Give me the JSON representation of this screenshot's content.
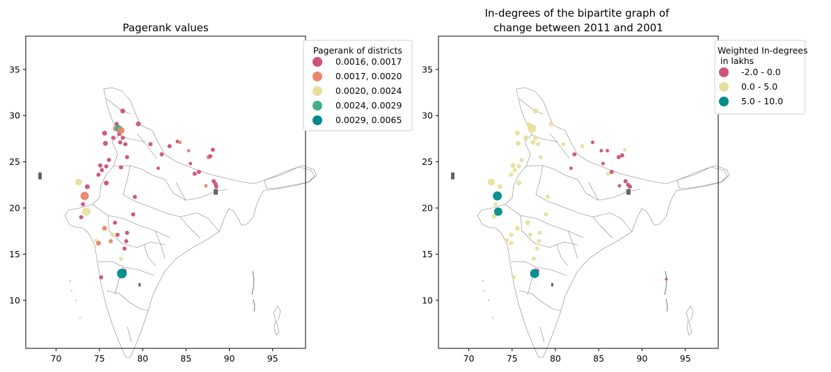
{
  "chart_data": [
    {
      "type": "scatter",
      "title": "Pagerank values",
      "xlim": [
        66.5,
        98.8
      ],
      "ylim": [
        4.8,
        38.6
      ],
      "xticks": [
        70,
        75,
        80,
        85,
        90,
        95
      ],
      "yticks": [
        10,
        15,
        20,
        25,
        30,
        35
      ],
      "legend": {
        "title": "Pagerank of districts",
        "placement": "top-right-outside",
        "entries": [
          {
            "label": "0.0016, 0.0017",
            "color": "#cb527b"
          },
          {
            "label": "0.0017, 0.0020",
            "color": "#e8866a"
          },
          {
            "label": "0.0020, 0.0024",
            "color": "#e6e09c"
          },
          {
            "label": "0.0024, 0.0029",
            "color": "#41b183"
          },
          {
            "label": "0.0029, 0.0065",
            "color": "#008b8b"
          }
        ]
      },
      "points": [
        {
          "x": 77.6,
          "y": 12.9,
          "class": 4,
          "size": 7
        },
        {
          "x": 77.2,
          "y": 28.6,
          "class": 3,
          "size": 5
        },
        {
          "x": 73.3,
          "y": 21.3,
          "class": 1,
          "size": 6
        },
        {
          "x": 72.6,
          "y": 22.8,
          "class": 2,
          "size": 5
        },
        {
          "x": 73.5,
          "y": 19.6,
          "class": 2,
          "size": 6
        },
        {
          "x": 77.5,
          "y": 28.4,
          "class": 1,
          "size": 5
        },
        {
          "x": 76.9,
          "y": 28.6,
          "class": 1,
          "size": 4
        },
        {
          "x": 87.6,
          "y": 25.5,
          "class": 1,
          "size": 3
        },
        {
          "x": 75.6,
          "y": 17.8,
          "class": 1,
          "size": 3.5
        },
        {
          "x": 74.9,
          "y": 16.2,
          "class": 1,
          "size": 3.5
        },
        {
          "x": 76.3,
          "y": 16.4,
          "class": 1,
          "size": 3
        },
        {
          "x": 84.3,
          "y": 27.1,
          "class": 1,
          "size": 2.5
        },
        {
          "x": 85.3,
          "y": 26.2,
          "class": 1,
          "size": 2.5
        },
        {
          "x": 87.3,
          "y": 22.4,
          "class": 1,
          "size": 2.5
        },
        {
          "x": 77.7,
          "y": 30.5,
          "class": 0,
          "size": 3.5
        },
        {
          "x": 79.5,
          "y": 29.1,
          "class": 0,
          "size": 3.5
        },
        {
          "x": 77.0,
          "y": 29.1,
          "class": 0,
          "size": 3
        },
        {
          "x": 77.3,
          "y": 28.0,
          "class": 0,
          "size": 3
        },
        {
          "x": 77.7,
          "y": 27.6,
          "class": 0,
          "size": 3
        },
        {
          "x": 77.4,
          "y": 27.1,
          "class": 0,
          "size": 3
        },
        {
          "x": 75.6,
          "y": 28.1,
          "class": 0,
          "size": 3.5
        },
        {
          "x": 76.6,
          "y": 27.6,
          "class": 0,
          "size": 3
        },
        {
          "x": 75.7,
          "y": 27.0,
          "class": 0,
          "size": 3.5
        },
        {
          "x": 78.0,
          "y": 26.9,
          "class": 0,
          "size": 3
        },
        {
          "x": 80.9,
          "y": 26.9,
          "class": 0,
          "size": 3
        },
        {
          "x": 83.1,
          "y": 26.7,
          "class": 0,
          "size": 3
        },
        {
          "x": 84.0,
          "y": 27.2,
          "class": 0,
          "size": 2.5
        },
        {
          "x": 82.2,
          "y": 25.8,
          "class": 0,
          "size": 3
        },
        {
          "x": 78.2,
          "y": 25.5,
          "class": 0,
          "size": 3
        },
        {
          "x": 76.1,
          "y": 25.2,
          "class": 0,
          "size": 3
        },
        {
          "x": 75.1,
          "y": 24.6,
          "class": 0,
          "size": 3
        },
        {
          "x": 75.8,
          "y": 24.5,
          "class": 0,
          "size": 3
        },
        {
          "x": 77.5,
          "y": 24.4,
          "class": 0,
          "size": 3
        },
        {
          "x": 75.3,
          "y": 24.1,
          "class": 0,
          "size": 3
        },
        {
          "x": 81.8,
          "y": 24.3,
          "class": 0,
          "size": 2.5
        },
        {
          "x": 74.9,
          "y": 23.6,
          "class": 0,
          "size": 3
        },
        {
          "x": 85.5,
          "y": 24.8,
          "class": 0,
          "size": 2.5
        },
        {
          "x": 86.0,
          "y": 23.7,
          "class": 0,
          "size": 3
        },
        {
          "x": 86.5,
          "y": 23.9,
          "class": 0,
          "size": 3
        },
        {
          "x": 87.8,
          "y": 25.6,
          "class": 0,
          "size": 3
        },
        {
          "x": 88.1,
          "y": 26.3,
          "class": 0,
          "size": 3
        },
        {
          "x": 75.8,
          "y": 22.7,
          "class": 0,
          "size": 3.5
        },
        {
          "x": 73.6,
          "y": 22.3,
          "class": 0,
          "size": 3.5
        },
        {
          "x": 73.1,
          "y": 20.4,
          "class": 0,
          "size": 3
        },
        {
          "x": 72.9,
          "y": 19.0,
          "class": 0,
          "size": 3
        },
        {
          "x": 79.1,
          "y": 21.2,
          "class": 0,
          "size": 3
        },
        {
          "x": 88.2,
          "y": 22.9,
          "class": 0,
          "size": 3
        },
        {
          "x": 88.4,
          "y": 22.6,
          "class": 0,
          "size": 3
        },
        {
          "x": 88.5,
          "y": 22.3,
          "class": 0,
          "size": 3
        },
        {
          "x": 78.9,
          "y": 19.3,
          "class": 0,
          "size": 3
        },
        {
          "x": 76.8,
          "y": 18.4,
          "class": 0,
          "size": 3
        },
        {
          "x": 78.2,
          "y": 17.3,
          "class": 0,
          "size": 3
        },
        {
          "x": 77.1,
          "y": 17.1,
          "class": 0,
          "size": 3
        },
        {
          "x": 78.1,
          "y": 16.4,
          "class": 0,
          "size": 3
        },
        {
          "x": 77.9,
          "y": 15.6,
          "class": 0,
          "size": 3
        },
        {
          "x": 75.2,
          "y": 12.5,
          "class": 0,
          "size": 3
        },
        {
          "x": 77.9,
          "y": 13.2,
          "class": 0,
          "size": 3
        },
        {
          "x": 76.5,
          "y": 17.1,
          "class": 2,
          "size": 3
        },
        {
          "x": 77.5,
          "y": 14.5,
          "class": 2,
          "size": 3
        },
        {
          "x": 74.6,
          "y": 16.5,
          "class": 2,
          "size": 2.5
        }
      ]
    },
    {
      "type": "scatter",
      "title": "In-degrees of the bipartite graph of",
      "title2": "change between 2011 and 2001",
      "xlim": [
        66.5,
        98.8
      ],
      "ylim": [
        4.8,
        38.6
      ],
      "xticks": [
        70,
        75,
        80,
        85,
        90,
        95
      ],
      "yticks": [
        10,
        15,
        20,
        25,
        30,
        35
      ],
      "legend": {
        "title": "Weighted In-degrees",
        "title2": " in lakhs",
        "placement": "top-right-outside",
        "entries": [
          {
            "label": "-2.0 - 0.0",
            "color": "#cb527b"
          },
          {
            "label": "0.0 - 5.0",
            "color": "#e6e09c"
          },
          {
            "label": "5.0 - 10.0",
            "color": "#008b8b"
          }
        ]
      },
      "points": [
        {
          "x": 73.3,
          "y": 21.3,
          "class": 2,
          "size": 6.5
        },
        {
          "x": 73.4,
          "y": 19.6,
          "class": 2,
          "size": 6
        },
        {
          "x": 77.6,
          "y": 12.9,
          "class": 2,
          "size": 6.5
        },
        {
          "x": 72.6,
          "y": 22.8,
          "class": 1,
          "size": 5
        },
        {
          "x": 77.3,
          "y": 28.6,
          "class": 1,
          "size": 6
        },
        {
          "x": 77.7,
          "y": 30.5,
          "class": 1,
          "size": 3.5
        },
        {
          "x": 79.5,
          "y": 29.1,
          "class": 1,
          "size": 3.5
        },
        {
          "x": 77.0,
          "y": 29.0,
          "class": 1,
          "size": 3.5
        },
        {
          "x": 75.6,
          "y": 28.1,
          "class": 1,
          "size": 3.5
        },
        {
          "x": 76.6,
          "y": 27.6,
          "class": 1,
          "size": 3.5
        },
        {
          "x": 77.4,
          "y": 27.1,
          "class": 1,
          "size": 3.5
        },
        {
          "x": 77.7,
          "y": 27.6,
          "class": 1,
          "size": 3.5
        },
        {
          "x": 75.7,
          "y": 27.0,
          "class": 1,
          "size": 3.5
        },
        {
          "x": 78.0,
          "y": 26.9,
          "class": 1,
          "size": 3
        },
        {
          "x": 80.9,
          "y": 26.9,
          "class": 1,
          "size": 3
        },
        {
          "x": 83.1,
          "y": 26.7,
          "class": 1,
          "size": 3
        },
        {
          "x": 76.1,
          "y": 25.2,
          "class": 1,
          "size": 3
        },
        {
          "x": 75.1,
          "y": 24.6,
          "class": 1,
          "size": 3.5
        },
        {
          "x": 75.8,
          "y": 24.5,
          "class": 1,
          "size": 3
        },
        {
          "x": 75.3,
          "y": 24.1,
          "class": 1,
          "size": 3
        },
        {
          "x": 74.9,
          "y": 23.6,
          "class": 1,
          "size": 3
        },
        {
          "x": 75.8,
          "y": 22.7,
          "class": 1,
          "size": 3.5
        },
        {
          "x": 73.6,
          "y": 22.3,
          "class": 1,
          "size": 3.5
        },
        {
          "x": 73.1,
          "y": 20.4,
          "class": 1,
          "size": 3
        },
        {
          "x": 72.9,
          "y": 19.1,
          "class": 1,
          "size": 3.5
        },
        {
          "x": 79.1,
          "y": 21.2,
          "class": 1,
          "size": 3
        },
        {
          "x": 78.9,
          "y": 19.3,
          "class": 1,
          "size": 3
        },
        {
          "x": 76.8,
          "y": 18.4,
          "class": 1,
          "size": 3.5
        },
        {
          "x": 75.6,
          "y": 17.8,
          "class": 1,
          "size": 3.5
        },
        {
          "x": 78.2,
          "y": 17.3,
          "class": 1,
          "size": 3
        },
        {
          "x": 77.1,
          "y": 17.1,
          "class": 1,
          "size": 3
        },
        {
          "x": 74.9,
          "y": 17.1,
          "class": 1,
          "size": 3
        },
        {
          "x": 78.1,
          "y": 16.4,
          "class": 1,
          "size": 3
        },
        {
          "x": 74.9,
          "y": 16.2,
          "class": 1,
          "size": 3
        },
        {
          "x": 74.4,
          "y": 16.5,
          "class": 1,
          "size": 3
        },
        {
          "x": 77.9,
          "y": 15.6,
          "class": 1,
          "size": 3
        },
        {
          "x": 77.5,
          "y": 14.5,
          "class": 1,
          "size": 3
        },
        {
          "x": 75.2,
          "y": 12.5,
          "class": 1,
          "size": 3
        },
        {
          "x": 78.3,
          "y": 25.5,
          "class": 1,
          "size": 3
        },
        {
          "x": 86.1,
          "y": 23.7,
          "class": 1,
          "size": 3
        },
        {
          "x": 88.0,
          "y": 26.3,
          "class": 1,
          "size": 2.5
        },
        {
          "x": 84.3,
          "y": 27.1,
          "class": 0,
          "size": 2.5
        },
        {
          "x": 85.3,
          "y": 26.2,
          "class": 0,
          "size": 2.5
        },
        {
          "x": 86.0,
          "y": 26.2,
          "class": 0,
          "size": 2.5
        },
        {
          "x": 82.2,
          "y": 25.8,
          "class": 0,
          "size": 3
        },
        {
          "x": 81.8,
          "y": 24.3,
          "class": 0,
          "size": 2.5
        },
        {
          "x": 85.5,
          "y": 24.8,
          "class": 0,
          "size": 2.5
        },
        {
          "x": 86.5,
          "y": 23.9,
          "class": 0,
          "size": 3
        },
        {
          "x": 87.3,
          "y": 25.5,
          "class": 0,
          "size": 3
        },
        {
          "x": 87.7,
          "y": 25.7,
          "class": 0,
          "size": 3
        },
        {
          "x": 88.1,
          "y": 22.9,
          "class": 0,
          "size": 3
        },
        {
          "x": 88.4,
          "y": 22.5,
          "class": 0,
          "size": 3
        },
        {
          "x": 88.6,
          "y": 22.3,
          "class": 0,
          "size": 3
        },
        {
          "x": 87.4,
          "y": 22.4,
          "class": 0,
          "size": 2.5
        },
        {
          "x": 77.9,
          "y": 13.2,
          "class": 0,
          "size": 3
        },
        {
          "x": 92.8,
          "y": 12.3,
          "class": 0,
          "size": 2
        }
      ]
    }
  ]
}
